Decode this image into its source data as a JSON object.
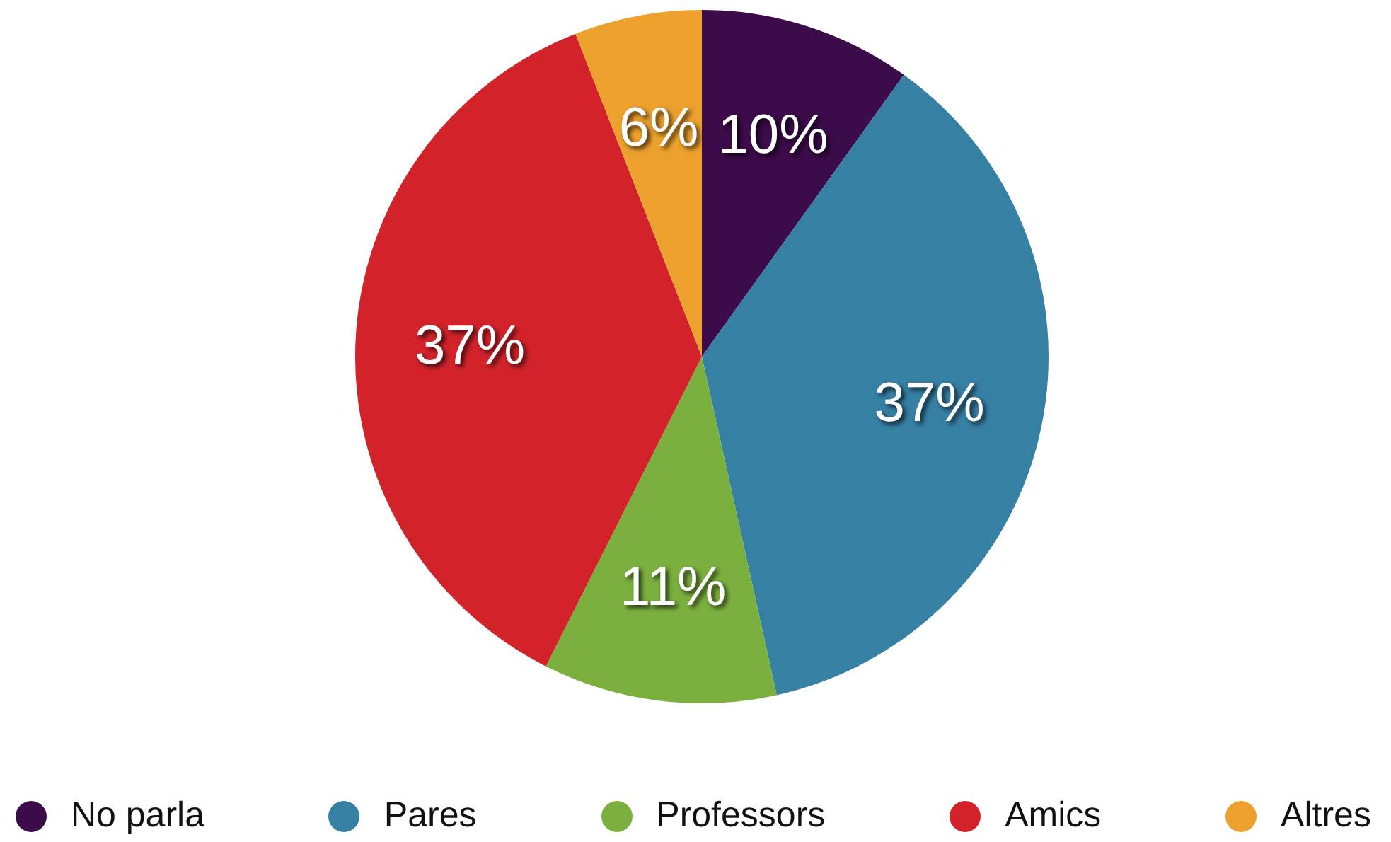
{
  "chart_data": {
    "type": "pie",
    "categories": [
      "No parla",
      "Pares",
      "Professors",
      "Amics",
      "Altres"
    ],
    "values": [
      10,
      37,
      11,
      37,
      6
    ],
    "colors": [
      "#3b0b4a",
      "#3680a4",
      "#7bb03f",
      "#d2232b",
      "#eca12e"
    ],
    "value_labels": [
      "10%",
      "37%",
      "11%",
      "37%",
      "6%"
    ],
    "legend": "bottom"
  }
}
